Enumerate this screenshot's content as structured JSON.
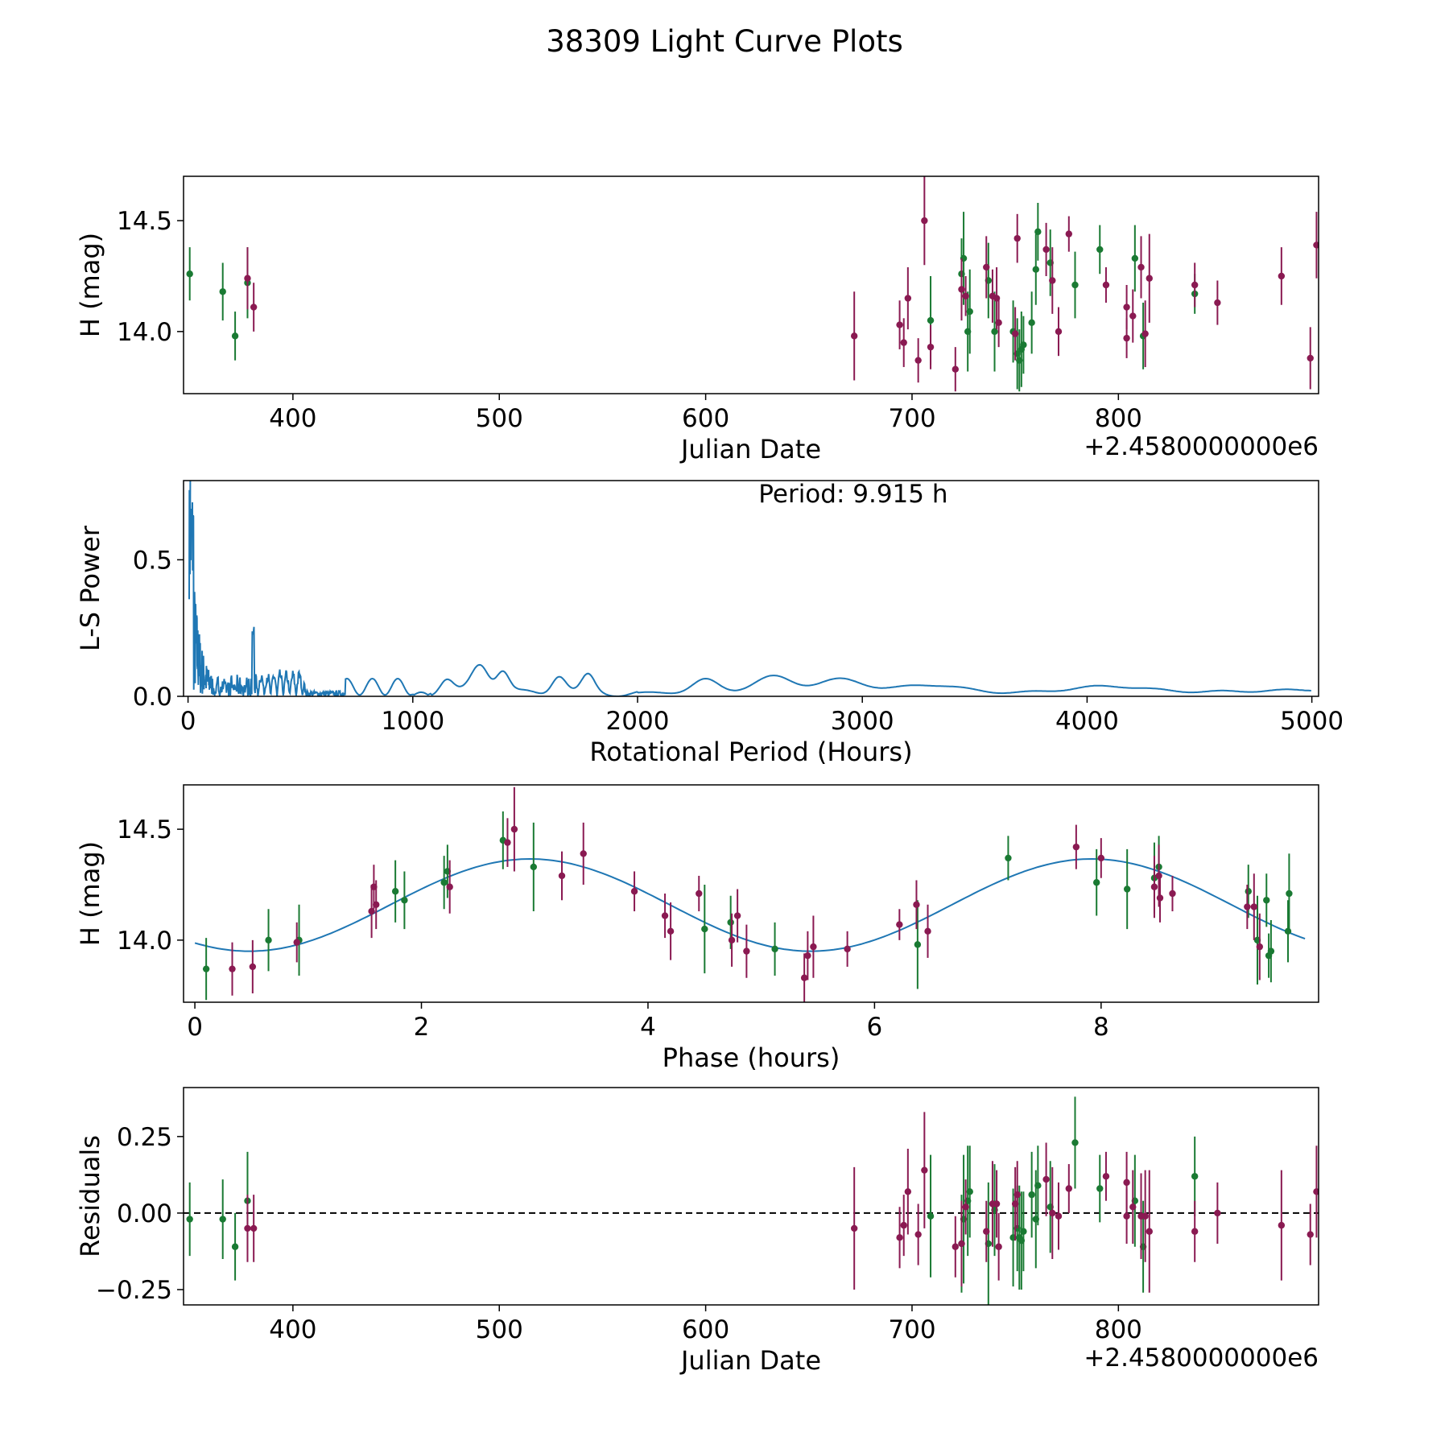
{
  "figure": {
    "title": "38309 Light Curve Plots"
  },
  "colors": {
    "green": "#1a7a33",
    "purple": "#8a1a52",
    "curve": "#1f77b4",
    "axis": "#000000"
  },
  "chart_data": [
    {
      "type": "scatter",
      "name": "raw-light-curve",
      "xlabel": "Julian Date",
      "ylabel": "H (mag)",
      "x_offset_label": "+2.4580000000e6",
      "xlim": [
        347,
        897
      ],
      "ylim": [
        13.72,
        14.7
      ],
      "xticks": [
        400,
        500,
        600,
        700,
        800
      ],
      "xtick_labels": [
        "400",
        "500",
        "600",
        "700",
        "800"
      ],
      "yticks": [
        14.0,
        14.5
      ],
      "ytick_labels": [
        "14.0",
        "14.5"
      ],
      "series": [
        {
          "name": "green",
          "color": "#1a7a33",
          "points": [
            [
              350,
              14.26,
              0.12
            ],
            [
              366,
              14.18,
              0.13
            ],
            [
              372,
              13.98,
              0.11
            ],
            [
              378,
              14.22,
              0.16
            ],
            [
              709,
              14.05,
              0.2
            ],
            [
              724,
              14.26,
              0.16
            ],
            [
              725,
              14.33,
              0.21
            ],
            [
              727,
              14.0,
              0.18
            ],
            [
              728,
              14.09,
              0.19
            ],
            [
              737,
              14.23,
              0.17
            ],
            [
              740,
              14.0,
              0.18
            ],
            [
              749,
              14.0,
              0.14
            ],
            [
              751,
              13.9,
              0.16
            ],
            [
              752,
              13.87,
              0.14
            ],
            [
              753,
              13.92,
              0.17
            ],
            [
              754,
              13.94,
              0.13
            ],
            [
              758,
              14.04,
              0.14
            ],
            [
              760,
              14.28,
              0.16
            ],
            [
              761,
              14.45,
              0.13
            ],
            [
              767,
              14.31,
              0.15
            ],
            [
              779,
              14.21,
              0.15
            ],
            [
              791,
              14.37,
              0.11
            ],
            [
              808,
              14.33,
              0.15
            ],
            [
              812,
              13.98,
              0.15
            ],
            [
              837,
              14.17,
              0.09
            ]
          ]
        },
        {
          "name": "purple",
          "color": "#8a1a52",
          "points": [
            [
              378,
              14.24,
              0.14
            ],
            [
              381,
              14.11,
              0.11
            ],
            [
              672,
              13.98,
              0.2
            ],
            [
              694,
              14.03,
              0.11
            ],
            [
              696,
              13.95,
              0.11
            ],
            [
              698,
              14.15,
              0.14
            ],
            [
              703,
              13.87,
              0.1
            ],
            [
              706,
              14.5,
              0.2
            ],
            [
              709,
              13.93,
              0.1
            ],
            [
              721,
              13.83,
              0.1
            ],
            [
              724,
              14.19,
              0.14
            ],
            [
              726,
              14.16,
              0.09
            ],
            [
              736,
              14.29,
              0.14
            ],
            [
              739,
              14.16,
              0.12
            ],
            [
              741,
              14.15,
              0.14
            ],
            [
              742,
              14.04,
              0.11
            ],
            [
              750,
              13.99,
              0.12
            ],
            [
              751,
              14.42,
              0.11
            ],
            [
              765,
              14.37,
              0.12
            ],
            [
              768,
              14.23,
              0.15
            ],
            [
              771,
              14.0,
              0.11
            ],
            [
              776,
              14.44,
              0.08
            ],
            [
              794,
              14.21,
              0.08
            ],
            [
              804,
              14.11,
              0.1
            ],
            [
              804,
              13.97,
              0.09
            ],
            [
              807,
              14.07,
              0.12
            ],
            [
              811,
              14.29,
              0.14
            ],
            [
              813,
              13.99,
              0.15
            ],
            [
              815,
              14.24,
              0.2
            ],
            [
              837,
              14.21,
              0.1
            ],
            [
              848,
              14.13,
              0.1
            ],
            [
              879,
              14.25,
              0.13
            ],
            [
              893,
              13.88,
              0.14
            ],
            [
              896,
              14.39,
              0.15
            ]
          ]
        }
      ]
    },
    {
      "type": "line",
      "name": "periodogram",
      "xlabel": "Rotational Period (Hours)",
      "ylabel": "L-S Power",
      "annotation": "Period: 9.915 h",
      "xlim": [
        -20,
        5030
      ],
      "ylim": [
        0,
        0.79
      ],
      "xticks": [
        0,
        1000,
        2000,
        3000,
        4000,
        5000
      ],
      "xtick_labels": [
        "0",
        "1000",
        "2000",
        "3000",
        "4000",
        "5000"
      ],
      "yticks": [
        0.0,
        0.5
      ],
      "ytick_labels": [
        "0.0",
        "0.5"
      ],
      "peak_period_hours": 9.915,
      "peak_power": 0.79
    },
    {
      "type": "scatter",
      "name": "phased-light-curve",
      "xlabel": "Phase (hours)",
      "ylabel": "H (mag)",
      "xlim": [
        -0.1,
        9.92
      ],
      "ylim": [
        13.72,
        14.7
      ],
      "xticks": [
        0,
        2,
        4,
        6,
        8
      ],
      "xtick_labels": [
        "0",
        "2",
        "4",
        "6",
        "8"
      ],
      "yticks": [
        14.0,
        14.5
      ],
      "ytick_labels": [
        "14.0",
        "14.5"
      ],
      "model": {
        "mean": 14.158,
        "amplitude": 0.208,
        "period_hours": 4.9575,
        "min_phase": 0.48
      },
      "series": [
        {
          "name": "green",
          "color": "#1a7a33",
          "points": [
            [
              0.1,
              13.87,
              0.14
            ],
            [
              0.65,
              14.0,
              0.14
            ],
            [
              0.92,
              14.0,
              0.16
            ],
            [
              1.77,
              14.22,
              0.14
            ],
            [
              1.85,
              14.18,
              0.13
            ],
            [
              2.2,
              14.26,
              0.12
            ],
            [
              2.23,
              14.31,
              0.12
            ],
            [
              2.72,
              14.45,
              0.13
            ],
            [
              2.99,
              14.33,
              0.2
            ],
            [
              4.5,
              14.05,
              0.2
            ],
            [
              4.73,
              14.08,
              0.12
            ],
            [
              5.12,
              13.96,
              0.12
            ],
            [
              6.38,
              13.98,
              0.2
            ],
            [
              7.18,
              14.37,
              0.1
            ],
            [
              7.96,
              14.26,
              0.15
            ],
            [
              8.23,
              14.23,
              0.18
            ],
            [
              8.47,
              14.28,
              0.16
            ],
            [
              8.51,
              14.33,
              0.14
            ],
            [
              9.3,
              14.22,
              0.12
            ],
            [
              9.38,
              14.0,
              0.2
            ],
            [
              9.46,
              14.18,
              0.12
            ],
            [
              9.48,
              13.93,
              0.1
            ],
            [
              9.5,
              13.95,
              0.14
            ],
            [
              9.65,
              14.04,
              0.14
            ],
            [
              9.66,
              14.21,
              0.18
            ]
          ]
        },
        {
          "name": "purple",
          "color": "#8a1a52",
          "points": [
            [
              0.33,
              13.87,
              0.12
            ],
            [
              0.51,
              13.88,
              0.12
            ],
            [
              0.9,
              13.99,
              0.09
            ],
            [
              1.56,
              14.13,
              0.12
            ],
            [
              1.58,
              14.24,
              0.1
            ],
            [
              1.6,
              14.16,
              0.11
            ],
            [
              2.25,
              14.24,
              0.12
            ],
            [
              2.76,
              14.44,
              0.11
            ],
            [
              2.82,
              14.5,
              0.19
            ],
            [
              3.24,
              14.29,
              0.11
            ],
            [
              3.43,
              14.39,
              0.14
            ],
            [
              3.88,
              14.22,
              0.09
            ],
            [
              4.15,
              14.11,
              0.1
            ],
            [
              4.2,
              14.04,
              0.13
            ],
            [
              4.45,
              14.21,
              0.08
            ],
            [
              4.74,
              14.0,
              0.12
            ],
            [
              4.79,
              14.11,
              0.12
            ],
            [
              4.87,
              13.95,
              0.12
            ],
            [
              5.38,
              13.83,
              0.11
            ],
            [
              5.41,
              13.93,
              0.11
            ],
            [
              5.46,
              13.97,
              0.14
            ],
            [
              5.76,
              13.96,
              0.08
            ],
            [
              6.22,
              14.07,
              0.07
            ],
            [
              6.37,
              14.16,
              0.11
            ],
            [
              6.47,
              14.04,
              0.12
            ],
            [
              7.78,
              14.42,
              0.1
            ],
            [
              8.0,
              14.37,
              0.09
            ],
            [
              8.47,
              14.24,
              0.14
            ],
            [
              8.51,
              14.29,
              0.14
            ],
            [
              8.52,
              14.19,
              0.11
            ],
            [
              8.63,
              14.21,
              0.08
            ],
            [
              9.29,
              14.15,
              0.1
            ],
            [
              9.35,
              14.15,
              0.15
            ],
            [
              9.4,
              13.97,
              0.15
            ]
          ]
        }
      ]
    },
    {
      "type": "scatter",
      "name": "residuals",
      "xlabel": "Julian Date",
      "ylabel": "Residuals",
      "x_offset_label": "+2.4580000000e6",
      "xlim": [
        347,
        897
      ],
      "ylim": [
        -0.3,
        0.41
      ],
      "xticks": [
        400,
        500,
        600,
        700,
        800
      ],
      "xtick_labels": [
        "400",
        "500",
        "600",
        "700",
        "800"
      ],
      "yticks": [
        -0.25,
        0.0,
        0.25
      ],
      "ytick_labels": [
        "−0.25",
        "0.00",
        "0.25"
      ],
      "zero_line": true,
      "series": [
        {
          "name": "green",
          "color": "#1a7a33",
          "points": [
            [
              350,
              -0.02,
              0.12
            ],
            [
              366,
              -0.02,
              0.13
            ],
            [
              372,
              -0.11,
              0.11
            ],
            [
              378,
              0.04,
              0.16
            ],
            [
              709,
              -0.01,
              0.2
            ],
            [
              724,
              -0.1,
              0.16
            ],
            [
              725,
              -0.02,
              0.21
            ],
            [
              727,
              0.04,
              0.18
            ],
            [
              728,
              0.07,
              0.15
            ],
            [
              737,
              -0.1,
              0.2
            ],
            [
              740,
              0.01,
              0.15
            ],
            [
              749,
              -0.08,
              0.16
            ],
            [
              751,
              -0.05,
              0.14
            ],
            [
              752,
              -0.08,
              0.17
            ],
            [
              753,
              -0.09,
              0.16
            ],
            [
              754,
              -0.06,
              0.13
            ],
            [
              758,
              0.06,
              0.14
            ],
            [
              760,
              -0.02,
              0.16
            ],
            [
              761,
              0.09,
              0.13
            ],
            [
              767,
              0.02,
              0.15
            ],
            [
              779,
              0.23,
              0.15
            ],
            [
              791,
              0.08,
              0.11
            ],
            [
              808,
              0.04,
              0.15
            ],
            [
              812,
              -0.11,
              0.15
            ],
            [
              837,
              0.12,
              0.13
            ]
          ]
        },
        {
          "name": "purple",
          "color": "#8a1a52",
          "points": [
            [
              378,
              -0.05,
              0.11
            ],
            [
              381,
              -0.05,
              0.11
            ],
            [
              672,
              -0.05,
              0.2
            ],
            [
              694,
              -0.08,
              0.1
            ],
            [
              696,
              -0.04,
              0.1
            ],
            [
              698,
              0.07,
              0.14
            ],
            [
              703,
              -0.07,
              0.1
            ],
            [
              706,
              0.14,
              0.19
            ],
            [
              721,
              -0.11,
              0.1
            ],
            [
              724,
              -0.1,
              0.14
            ],
            [
              726,
              0.02,
              0.09
            ],
            [
              736,
              -0.06,
              0.1
            ],
            [
              739,
              0.03,
              0.14
            ],
            [
              741,
              0.03,
              0.11
            ],
            [
              742,
              -0.11,
              0.11
            ],
            [
              750,
              0.03,
              0.12
            ],
            [
              751,
              0.06,
              0.11
            ],
            [
              765,
              0.11,
              0.12
            ],
            [
              768,
              0.0,
              0.15
            ],
            [
              771,
              -0.01,
              0.11
            ],
            [
              776,
              0.08,
              0.08
            ],
            [
              794,
              0.12,
              0.08
            ],
            [
              804,
              0.1,
              0.1
            ],
            [
              804,
              -0.01,
              0.09
            ],
            [
              807,
              0.02,
              0.12
            ],
            [
              811,
              -0.01,
              0.14
            ],
            [
              813,
              -0.01,
              0.15
            ],
            [
              815,
              -0.06,
              0.2
            ],
            [
              837,
              -0.06,
              0.1
            ],
            [
              848,
              0.0,
              0.1
            ],
            [
              879,
              -0.04,
              0.18
            ],
            [
              893,
              -0.07,
              0.1
            ],
            [
              896,
              0.07,
              0.15
            ]
          ]
        }
      ]
    }
  ]
}
